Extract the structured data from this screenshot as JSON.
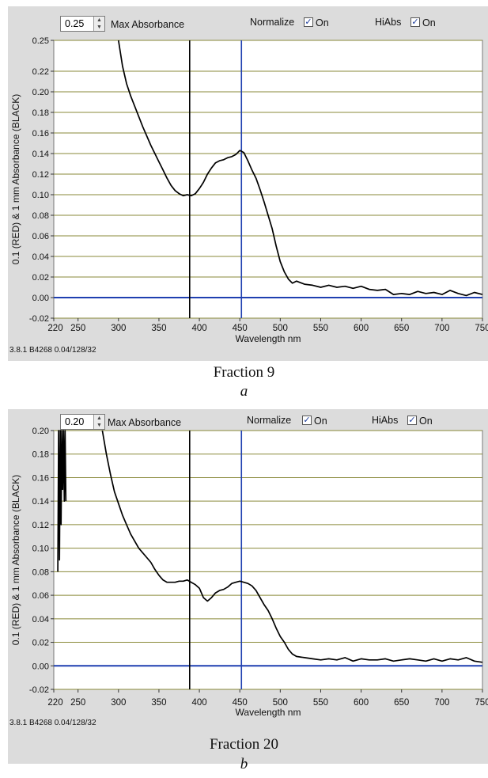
{
  "panels": [
    {
      "max_absorbance_value": "0.25",
      "max_absorbance_label": "Max Absorbance",
      "normalize_label": "Normalize",
      "normalize_state": "On",
      "hiabs_label": "HiAbs",
      "hiabs_state": "On",
      "status_text": "3.8.1 B4268 0.04/128/32",
      "caption": "Fraction  9",
      "sublabel": "a"
    },
    {
      "max_absorbance_value": "0.20",
      "max_absorbance_label": "Max Absorbance",
      "normalize_label": "Normalize",
      "normalize_state": "On",
      "hiabs_label": "HiAbs",
      "hiabs_state": "On",
      "status_text": "3.8.1 B4268 0.04/128/32",
      "caption": "Fraction 20",
      "sublabel": "b"
    }
  ],
  "colors": {
    "panel_bg": "#dcdcdc",
    "plot_bg": "#ffffff",
    "gridline": "#8a8a3a",
    "baseline": "#1f3fb0",
    "cursor_black": "#000000",
    "cursor_blue": "#1f3fb0",
    "trace": "#000000"
  },
  "chart_data": [
    {
      "type": "line",
      "xlabel": "Wavelength nm",
      "ylabel": "0.1 (RED) & 1 mm Absorbance (BLACK)",
      "xlim": [
        220,
        750
      ],
      "ylim": [
        -0.02,
        0.25
      ],
      "x_ticks": [
        220,
        250,
        300,
        350,
        400,
        450,
        500,
        550,
        600,
        650,
        700,
        750
      ],
      "x_tick_labels": [
        "220",
        "250",
        "300",
        "350",
        "400",
        "450",
        "500",
        "550",
        "600",
        "650",
        "700",
        "750"
      ],
      "y_ticks": [
        -0.02,
        0.0,
        0.02,
        0.04,
        0.06,
        0.08,
        0.1,
        0.12,
        0.14,
        0.16,
        0.18,
        0.2,
        0.22,
        0.25
      ],
      "y_tick_labels": [
        "-0.02",
        "0.00",
        "0.02",
        "0.04",
        "0.06",
        "0.08",
        "0.10",
        "0.12",
        "0.14",
        "0.16",
        "0.18",
        "0.20",
        "0.22",
        "0.25"
      ],
      "grid": true,
      "vertical_markers": [
        {
          "x": 388,
          "color": "black"
        },
        {
          "x": 452,
          "color": "blue"
        }
      ],
      "series": [
        {
          "x": [
            300,
            305,
            310,
            315,
            320,
            325,
            330,
            335,
            340,
            345,
            350,
            355,
            360,
            365,
            370,
            375,
            380,
            385,
            390,
            395,
            400,
            405,
            410,
            415,
            420,
            425,
            430,
            435,
            440,
            445,
            450,
            455,
            460,
            465,
            470,
            475,
            480,
            485,
            490,
            495,
            500,
            505,
            510,
            515,
            520,
            530,
            540,
            550,
            560,
            570,
            580,
            590,
            600,
            610,
            620,
            630,
            640,
            650,
            660,
            670,
            680,
            690,
            700,
            710,
            720,
            730,
            740,
            750
          ],
          "y": [
            0.25,
            0.225,
            0.208,
            0.196,
            0.186,
            0.176,
            0.166,
            0.157,
            0.148,
            0.14,
            0.132,
            0.124,
            0.116,
            0.109,
            0.104,
            0.101,
            0.099,
            0.1,
            0.099,
            0.101,
            0.106,
            0.112,
            0.12,
            0.126,
            0.131,
            0.133,
            0.134,
            0.136,
            0.137,
            0.139,
            0.143,
            0.141,
            0.133,
            0.124,
            0.116,
            0.105,
            0.093,
            0.08,
            0.067,
            0.05,
            0.035,
            0.025,
            0.018,
            0.014,
            0.016,
            0.013,
            0.012,
            0.01,
            0.012,
            0.01,
            0.011,
            0.009,
            0.011,
            0.008,
            0.007,
            0.008,
            0.003,
            0.004,
            0.003,
            0.006,
            0.004,
            0.005,
            0.003,
            0.007,
            0.004,
            0.002,
            0.005,
            0.003
          ]
        }
      ]
    },
    {
      "type": "line",
      "xlabel": "Wavelength nm",
      "ylabel": "0.1 (RED) & 1 mm Absorbance (BLACK)",
      "xlim": [
        220,
        750
      ],
      "ylim": [
        -0.02,
        0.2
      ],
      "x_ticks": [
        220,
        250,
        300,
        350,
        400,
        450,
        500,
        550,
        600,
        650,
        700,
        750
      ],
      "x_tick_labels": [
        "220",
        "250",
        "300",
        "350",
        "400",
        "450",
        "500",
        "550",
        "600",
        "650",
        "700",
        "750"
      ],
      "y_ticks": [
        -0.02,
        0.0,
        0.02,
        0.04,
        0.06,
        0.08,
        0.1,
        0.12,
        0.14,
        0.16,
        0.18,
        0.2
      ],
      "y_tick_labels": [
        "-0.02",
        "0.00",
        "0.02",
        "0.04",
        "0.06",
        "0.08",
        "0.10",
        "0.12",
        "0.14",
        "0.16",
        "0.18",
        "0.20"
      ],
      "grid": true,
      "vertical_markers": [
        {
          "x": 388,
          "color": "black"
        },
        {
          "x": 452,
          "color": "blue"
        }
      ],
      "series": [
        {
          "x": [
            225,
            226,
            227,
            228,
            229,
            230,
            231,
            232,
            233,
            234,
            235
          ],
          "y": [
            0.08,
            0.2,
            0.09,
            0.2,
            0.12,
            0.2,
            0.15,
            0.2,
            0.14,
            0.2,
            0.14
          ]
        },
        {
          "x": [
            280,
            285,
            290,
            295,
            300,
            305,
            310,
            315,
            320,
            325,
            330,
            335,
            340,
            345,
            350,
            355,
            360,
            365,
            370,
            375,
            380,
            385,
            390,
            395,
            400,
            405,
            410,
            415,
            420,
            425,
            430,
            435,
            440,
            445,
            450,
            455,
            460,
            465,
            470,
            475,
            480,
            485,
            490,
            495,
            500,
            505,
            510,
            515,
            520,
            530,
            540,
            550,
            560,
            570,
            580,
            590,
            600,
            610,
            620,
            630,
            640,
            650,
            660,
            670,
            680,
            690,
            700,
            710,
            720,
            730,
            740,
            750
          ],
          "y": [
            0.2,
            0.18,
            0.163,
            0.148,
            0.138,
            0.128,
            0.12,
            0.112,
            0.106,
            0.1,
            0.096,
            0.092,
            0.088,
            0.082,
            0.077,
            0.073,
            0.071,
            0.071,
            0.071,
            0.072,
            0.072,
            0.073,
            0.071,
            0.069,
            0.066,
            0.058,
            0.055,
            0.058,
            0.062,
            0.064,
            0.065,
            0.067,
            0.07,
            0.071,
            0.072,
            0.071,
            0.07,
            0.068,
            0.064,
            0.058,
            0.052,
            0.047,
            0.04,
            0.032,
            0.025,
            0.02,
            0.014,
            0.01,
            0.008,
            0.007,
            0.006,
            0.005,
            0.006,
            0.005,
            0.007,
            0.004,
            0.006,
            0.005,
            0.005,
            0.006,
            0.004,
            0.005,
            0.006,
            0.005,
            0.004,
            0.006,
            0.004,
            0.006,
            0.005,
            0.007,
            0.004,
            0.003
          ]
        }
      ]
    }
  ]
}
